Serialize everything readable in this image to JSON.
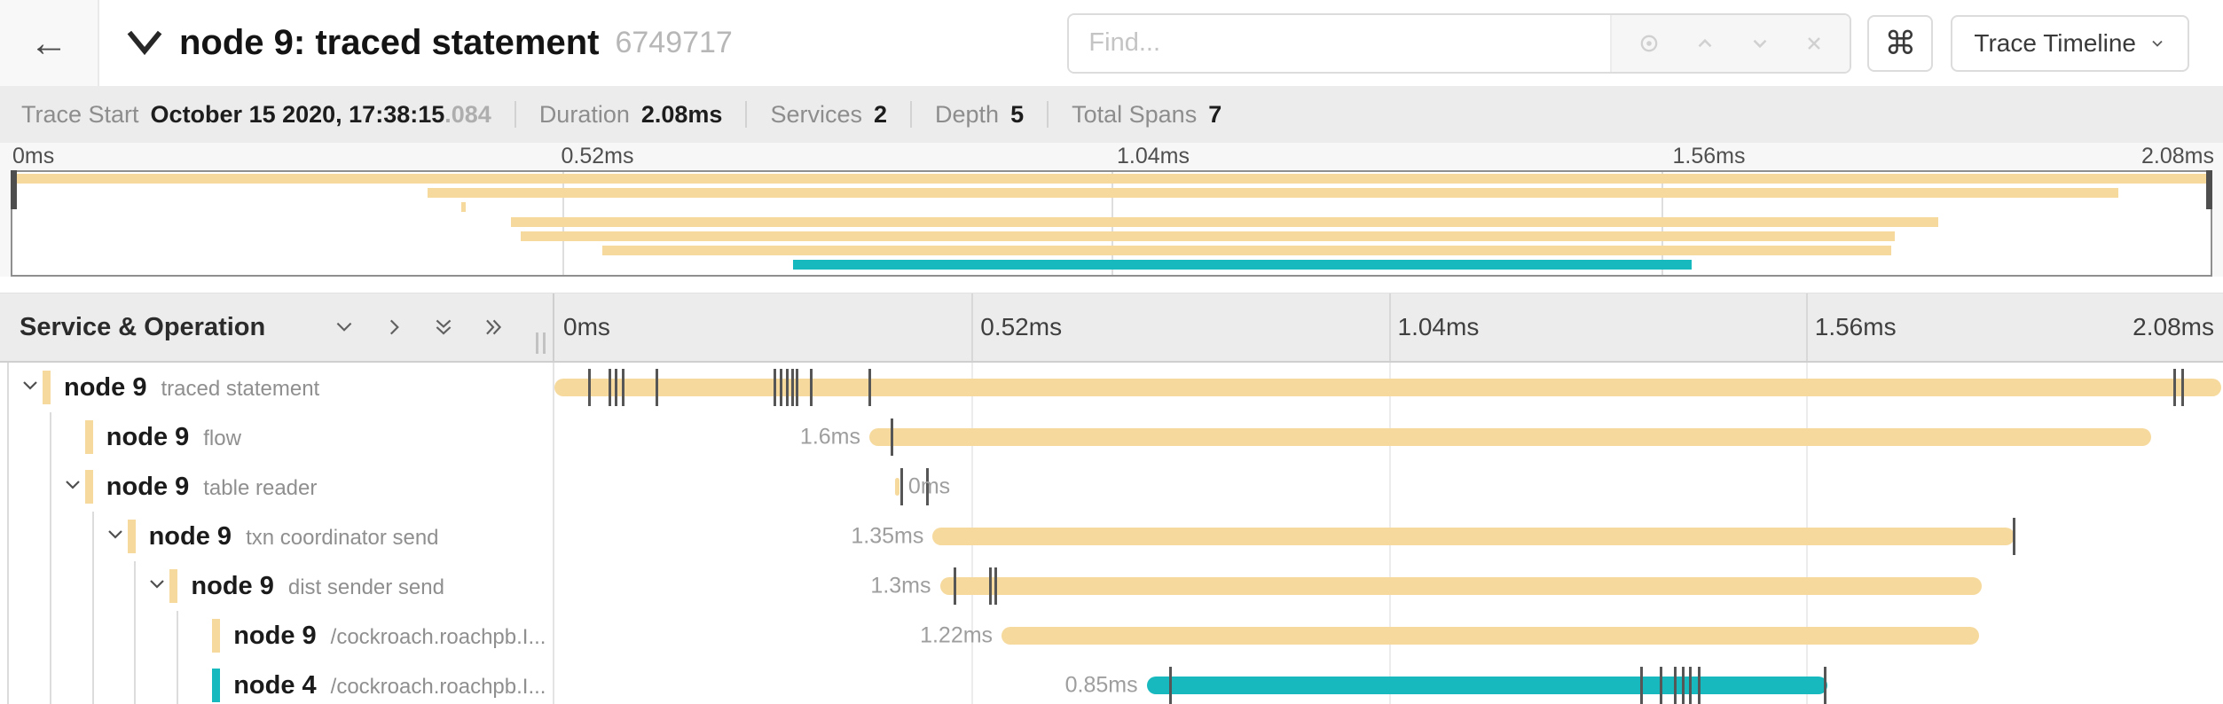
{
  "topbar": {
    "back_label": "←",
    "collapse_icon": "chevron-down-icon",
    "title": "node 9: traced statement",
    "trace_id": "6749717",
    "find": {
      "placeholder": "Find...",
      "icons": [
        "locate-icon",
        "prev-match-icon",
        "next-match-icon",
        "clear-icon"
      ]
    },
    "shortcut_key": "⌘",
    "view_selector": {
      "label": "Trace Timeline",
      "icon": "chevron-down-icon"
    }
  },
  "summary": {
    "items": [
      {
        "label": "Trace Start",
        "value": "October 15 2020, 17:38:15",
        "suffix": ".084"
      },
      {
        "label": "Duration",
        "value": "2.08ms",
        "suffix": ""
      },
      {
        "label": "Services",
        "value": "2",
        "suffix": ""
      },
      {
        "label": "Depth",
        "value": "5",
        "suffix": ""
      },
      {
        "label": "Total Spans",
        "value": "7",
        "suffix": ""
      }
    ]
  },
  "timeline": {
    "duration_ms": 2.08,
    "tick_labels": [
      "0ms",
      "0.52ms",
      "1.04ms",
      "1.56ms",
      "2.08ms"
    ],
    "header_label": "Service & Operation",
    "header_icons": [
      "chevron-down-icon",
      "chevron-right-icon",
      "double-chevron-down-icon",
      "double-chevron-right-icon"
    ]
  },
  "colors": {
    "wheat": "#f6d99d",
    "teal": "#17b8be"
  },
  "spans": [
    {
      "service": "node 9",
      "operation": "traced statement",
      "depth": 0,
      "has_children": true,
      "color": "wheat",
      "start_ms": 0,
      "duration_ms": 2.08,
      "duration_label": "",
      "label_side": "none",
      "event_ticks_ms": [
        0.044,
        0.069,
        0.077,
        0.086,
        0.128,
        0.275,
        0.283,
        0.291,
        0.297,
        0.303,
        0.32,
        0.393,
        2.022,
        2.032
      ]
    },
    {
      "service": "node 9",
      "operation": "flow",
      "depth": 1,
      "has_children": false,
      "color": "wheat",
      "start_ms": 0.393,
      "duration_ms": 1.6,
      "duration_label": "1.6ms",
      "label_side": "left",
      "event_ticks_ms": [
        0.421
      ]
    },
    {
      "service": "node 9",
      "operation": "table reader",
      "depth": 1,
      "has_children": true,
      "color": "wheat",
      "start_ms": 0.425,
      "duration_ms": 0.004,
      "duration_label": "0ms",
      "label_side": "right",
      "event_ticks_ms": [
        0.433,
        0.465
      ]
    },
    {
      "service": "node 9",
      "operation": "txn coordinator send",
      "depth": 2,
      "has_children": true,
      "color": "wheat",
      "start_ms": 0.472,
      "duration_ms": 1.35,
      "duration_label": "1.35ms",
      "label_side": "left",
      "event_ticks_ms": [
        1.822
      ]
    },
    {
      "service": "node 9",
      "operation": "dist sender send",
      "depth": 3,
      "has_children": true,
      "color": "wheat",
      "start_ms": 0.481,
      "duration_ms": 1.3,
      "duration_label": "1.3ms",
      "label_side": "left",
      "event_ticks_ms": [
        0.5,
        0.544,
        0.551
      ]
    },
    {
      "service": "node 9",
      "operation": "/cockroach.roachpb.I...",
      "depth": 4,
      "has_children": false,
      "color": "wheat",
      "start_ms": 0.558,
      "duration_ms": 1.22,
      "duration_label": "1.22ms",
      "label_side": "left",
      "event_ticks_ms": []
    },
    {
      "service": "node 4",
      "operation": "/cockroach.roachpb.I...",
      "depth": 4,
      "has_children": false,
      "color": "teal",
      "start_ms": 0.739,
      "duration_ms": 0.85,
      "duration_label": "0.85ms",
      "label_side": "left",
      "event_ticks_ms": [
        0.769,
        1.357,
        1.381,
        1.399,
        1.409,
        1.418,
        1.428,
        1.586
      ]
    }
  ]
}
